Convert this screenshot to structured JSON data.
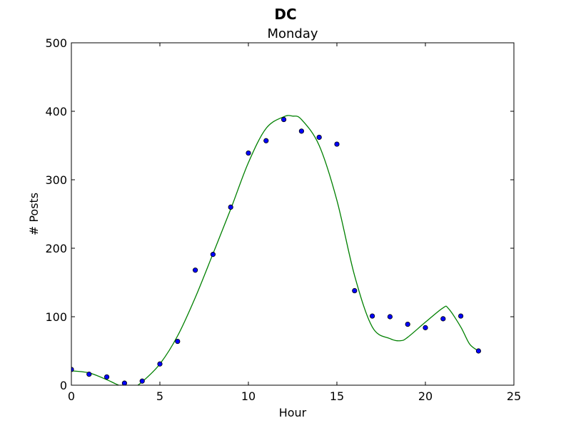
{
  "chart_data": {
    "type": "scatter",
    "suptitle": "DC",
    "title": "Monday",
    "xlabel": "Hour",
    "ylabel": "# Posts",
    "xlim": [
      0,
      25
    ],
    "ylim": [
      0,
      500
    ],
    "xticks": [
      0,
      5,
      10,
      15,
      20,
      25
    ],
    "yticks": [
      0,
      100,
      200,
      300,
      400,
      500
    ],
    "grid": false,
    "series": [
      {
        "kind": "scatter",
        "color": "#0000ff",
        "x": [
          0,
          1,
          2,
          3,
          4,
          5,
          6,
          7,
          8,
          9,
          10,
          11,
          12,
          13,
          14,
          15,
          16,
          17,
          18,
          19,
          20,
          21,
          22,
          23
        ],
        "y": [
          23,
          16,
          12,
          3,
          6,
          31,
          64,
          168,
          191,
          260,
          339,
          357,
          388,
          371,
          362,
          352,
          138,
          101,
          100,
          89,
          84,
          97,
          101,
          50
        ]
      },
      {
        "kind": "line",
        "color": "#008000",
        "x": [
          0,
          1,
          2,
          2.5,
          3,
          3.5,
          4,
          5,
          6,
          7,
          8,
          9,
          10,
          11,
          12,
          12.5,
          13,
          14,
          15,
          16,
          17,
          18,
          18.6,
          19,
          20,
          21,
          21.3,
          22,
          22.5,
          23
        ],
        "y": [
          21,
          18,
          8,
          2,
          -3,
          -3,
          5,
          31,
          72,
          128,
          192,
          257,
          325,
          375,
          392,
          393,
          388,
          350,
          270,
          160,
          85,
          68,
          65,
          70,
          92,
          113,
          112,
          85,
          60,
          50
        ]
      }
    ]
  }
}
